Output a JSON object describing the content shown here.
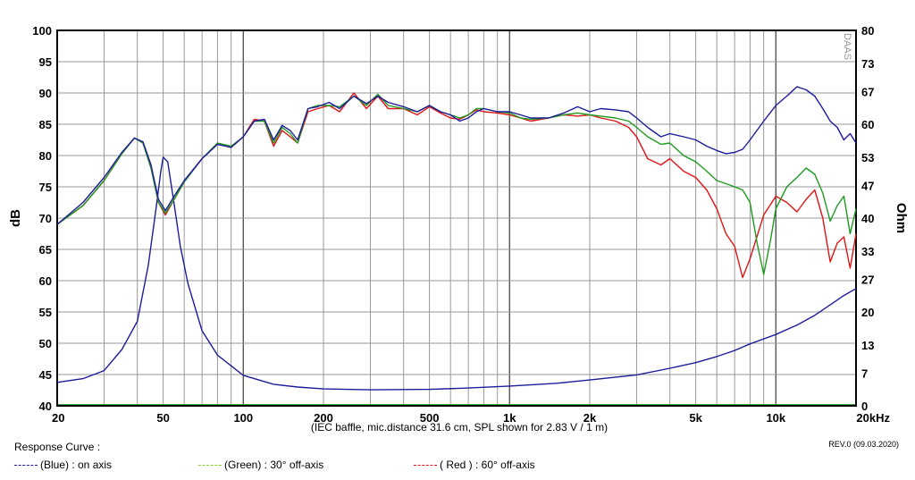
{
  "chart_data": {
    "type": "line",
    "ylabel_left": "dB",
    "ylabel_right": "Ohm",
    "note": "(IEC baffle, mic.distance 31.6 cm, SPL shown for 2.83 V / 1 m)",
    "watermark": "DAAS",
    "x_scale": "log",
    "xlim": [
      20,
      20000
    ],
    "ylim_left": [
      40,
      100
    ],
    "ylim_right": [
      0,
      80
    ],
    "grid": true,
    "x_ticks": [
      {
        "value": 20,
        "label": "20"
      },
      {
        "value": 50,
        "label": "50"
      },
      {
        "value": 100,
        "label": "100"
      },
      {
        "value": 200,
        "label": "200"
      },
      {
        "value": 500,
        "label": "500"
      },
      {
        "value": 1000,
        "label": "1k"
      },
      {
        "value": 2000,
        "label": "2k"
      },
      {
        "value": 5000,
        "label": "5k"
      },
      {
        "value": 10000,
        "label": "10k"
      },
      {
        "value": 20000,
        "label": "20kHz"
      }
    ],
    "y_ticks_left": [
      {
        "value": 100,
        "label": "100"
      },
      {
        "value": 95,
        "label": "95"
      },
      {
        "value": 90,
        "label": "90"
      },
      {
        "value": 85,
        "label": "85"
      },
      {
        "value": 80,
        "label": "80"
      },
      {
        "value": 75,
        "label": "75"
      },
      {
        "value": 70,
        "label": "70"
      },
      {
        "value": 65,
        "label": "65"
      },
      {
        "value": 60,
        "label": "60"
      },
      {
        "value": 55,
        "label": "55"
      },
      {
        "value": 50,
        "label": "50"
      },
      {
        "value": 45,
        "label": "45"
      },
      {
        "value": 40,
        "label": "40"
      }
    ],
    "y_ticks_right": [
      {
        "value": 80,
        "label": "80"
      },
      {
        "value": 73,
        "label": "73"
      },
      {
        "value": 67,
        "label": "67"
      },
      {
        "value": 60,
        "label": "60"
      },
      {
        "value": 53,
        "label": "53"
      },
      {
        "value": 47,
        "label": "47"
      },
      {
        "value": 40,
        "label": "40"
      },
      {
        "value": 33,
        "label": "33"
      },
      {
        "value": 27,
        "label": "27"
      },
      {
        "value": 20,
        "label": "20"
      },
      {
        "value": 13,
        "label": "13"
      },
      {
        "value": 7,
        "label": "7"
      },
      {
        "value": 0,
        "label": "0"
      }
    ],
    "series": [
      {
        "name": "(Blue)  : on axis",
        "color": "#1c1c9c",
        "axis": "left",
        "points": [
          [
            20,
            69.0
          ],
          [
            25,
            72.5
          ],
          [
            30,
            76.5
          ],
          [
            35,
            80.5
          ],
          [
            39,
            82.8
          ],
          [
            42,
            82.2
          ],
          [
            45,
            78.5
          ],
          [
            48,
            73.0
          ],
          [
            51,
            71.2
          ],
          [
            55,
            73.5
          ],
          [
            60,
            76.0
          ],
          [
            70,
            79.5
          ],
          [
            80,
            81.8
          ],
          [
            90,
            81.3
          ],
          [
            100,
            83.0
          ],
          [
            110,
            85.5
          ],
          [
            120,
            85.8
          ],
          [
            130,
            82.5
          ],
          [
            140,
            84.8
          ],
          [
            150,
            84.0
          ],
          [
            160,
            82.5
          ],
          [
            175,
            87.5
          ],
          [
            190,
            87.8
          ],
          [
            210,
            88.5
          ],
          [
            230,
            87.5
          ],
          [
            260,
            89.5
          ],
          [
            290,
            88.3
          ],
          [
            320,
            89.5
          ],
          [
            350,
            88.5
          ],
          [
            400,
            87.8
          ],
          [
            450,
            87.0
          ],
          [
            500,
            88.0
          ],
          [
            550,
            87.0
          ],
          [
            600,
            86.5
          ],
          [
            650,
            85.5
          ],
          [
            700,
            86.0
          ],
          [
            750,
            87.0
          ],
          [
            800,
            87.5
          ],
          [
            900,
            87.0
          ],
          [
            1000,
            87.0
          ],
          [
            1100,
            86.5
          ],
          [
            1200,
            86.0
          ],
          [
            1400,
            86.0
          ],
          [
            1600,
            86.8
          ],
          [
            1800,
            87.8
          ],
          [
            2000,
            87.0
          ],
          [
            2200,
            87.5
          ],
          [
            2500,
            87.3
          ],
          [
            2800,
            87.0
          ],
          [
            3000,
            86.0
          ],
          [
            3300,
            84.5
          ],
          [
            3700,
            83.0
          ],
          [
            4000,
            83.5
          ],
          [
            4500,
            83.0
          ],
          [
            5000,
            82.5
          ],
          [
            5500,
            81.5
          ],
          [
            6000,
            80.8
          ],
          [
            6500,
            80.3
          ],
          [
            7000,
            80.5
          ],
          [
            7500,
            81.0
          ],
          [
            8000,
            82.5
          ],
          [
            9000,
            85.5
          ],
          [
            10000,
            88.0
          ],
          [
            11000,
            89.5
          ],
          [
            12000,
            91.0
          ],
          [
            13000,
            90.5
          ],
          [
            14000,
            89.5
          ],
          [
            15000,
            87.5
          ],
          [
            16000,
            85.5
          ],
          [
            17000,
            84.5
          ],
          [
            18000,
            82.5
          ],
          [
            19000,
            83.5
          ],
          [
            20000,
            82.0
          ]
        ]
      },
      {
        "name": "(Green) : 30° off-axis",
        "color": "#1e9b1e",
        "axis": "left",
        "points": [
          [
            20,
            69.0
          ],
          [
            25,
            72.0
          ],
          [
            30,
            76.0
          ],
          [
            35,
            80.3
          ],
          [
            39,
            82.8
          ],
          [
            42,
            82.0
          ],
          [
            45,
            78.0
          ],
          [
            48,
            72.5
          ],
          [
            51,
            70.8
          ],
          [
            55,
            73.0
          ],
          [
            60,
            75.8
          ],
          [
            70,
            79.5
          ],
          [
            80,
            82.0
          ],
          [
            90,
            81.5
          ],
          [
            100,
            83.0
          ],
          [
            110,
            85.5
          ],
          [
            120,
            85.5
          ],
          [
            130,
            82.0
          ],
          [
            140,
            84.5
          ],
          [
            150,
            83.5
          ],
          [
            160,
            82.0
          ],
          [
            175,
            87.5
          ],
          [
            190,
            88.0
          ],
          [
            210,
            88.0
          ],
          [
            230,
            87.8
          ],
          [
            260,
            89.5
          ],
          [
            290,
            88.0
          ],
          [
            320,
            89.8
          ],
          [
            350,
            88.0
          ],
          [
            400,
            87.5
          ],
          [
            450,
            87.0
          ],
          [
            500,
            88.0
          ],
          [
            550,
            87.0
          ],
          [
            600,
            86.5
          ],
          [
            650,
            86.0
          ],
          [
            700,
            86.5
          ],
          [
            750,
            87.5
          ],
          [
            800,
            87.5
          ],
          [
            900,
            87.0
          ],
          [
            1000,
            86.8
          ],
          [
            1100,
            86.0
          ],
          [
            1200,
            85.8
          ],
          [
            1400,
            86.0
          ],
          [
            1600,
            86.5
          ],
          [
            1800,
            86.8
          ],
          [
            2000,
            86.5
          ],
          [
            2200,
            86.3
          ],
          [
            2500,
            86.0
          ],
          [
            2800,
            85.5
          ],
          [
            3000,
            84.5
          ],
          [
            3300,
            83.0
          ],
          [
            3700,
            81.8
          ],
          [
            4000,
            82.0
          ],
          [
            4500,
            80.0
          ],
          [
            5000,
            79.0
          ],
          [
            5500,
            77.5
          ],
          [
            6000,
            76.0
          ],
          [
            6500,
            75.5
          ],
          [
            7000,
            75.0
          ],
          [
            7500,
            74.5
          ],
          [
            8000,
            72.5
          ],
          [
            8500,
            66.0
          ],
          [
            9000,
            61.0
          ],
          [
            9500,
            66.0
          ],
          [
            10000,
            71.5
          ],
          [
            11000,
            75.0
          ],
          [
            12000,
            76.5
          ],
          [
            13000,
            78.0
          ],
          [
            14000,
            77.0
          ],
          [
            15000,
            74.0
          ],
          [
            16000,
            69.5
          ],
          [
            17000,
            72.0
          ],
          [
            18000,
            73.5
          ],
          [
            19000,
            67.5
          ],
          [
            20000,
            71.5
          ]
        ]
      },
      {
        "name": "( Red ) : 60° off-axis",
        "color": "#e11414",
        "axis": "left",
        "points": [
          [
            20,
            69.0
          ],
          [
            25,
            72.0
          ],
          [
            30,
            76.0
          ],
          [
            35,
            80.3
          ],
          [
            39,
            82.8
          ],
          [
            42,
            82.0
          ],
          [
            45,
            78.0
          ],
          [
            48,
            72.5
          ],
          [
            51,
            70.5
          ],
          [
            55,
            73.0
          ],
          [
            60,
            75.8
          ],
          [
            70,
            79.5
          ],
          [
            80,
            81.8
          ],
          [
            90,
            81.3
          ],
          [
            100,
            83.0
          ],
          [
            110,
            85.8
          ],
          [
            120,
            85.5
          ],
          [
            130,
            81.5
          ],
          [
            140,
            84.0
          ],
          [
            150,
            83.0
          ],
          [
            160,
            82.0
          ],
          [
            175,
            87.0
          ],
          [
            190,
            87.5
          ],
          [
            210,
            88.0
          ],
          [
            230,
            87.0
          ],
          [
            260,
            90.0
          ],
          [
            290,
            87.5
          ],
          [
            320,
            89.5
          ],
          [
            350,
            87.5
          ],
          [
            400,
            87.5
          ],
          [
            450,
            86.5
          ],
          [
            500,
            87.8
          ],
          [
            550,
            86.8
          ],
          [
            600,
            86.0
          ],
          [
            650,
            85.8
          ],
          [
            700,
            86.5
          ],
          [
            750,
            87.3
          ],
          [
            800,
            87.0
          ],
          [
            900,
            86.8
          ],
          [
            1000,
            86.5
          ],
          [
            1100,
            86.0
          ],
          [
            1200,
            85.5
          ],
          [
            1400,
            86.0
          ],
          [
            1600,
            86.5
          ],
          [
            1800,
            86.3
          ],
          [
            2000,
            86.5
          ],
          [
            2200,
            86.0
          ],
          [
            2500,
            85.5
          ],
          [
            2800,
            84.5
          ],
          [
            3000,
            83.0
          ],
          [
            3300,
            79.5
          ],
          [
            3700,
            78.5
          ],
          [
            4000,
            79.5
          ],
          [
            4500,
            77.5
          ],
          [
            5000,
            76.5
          ],
          [
            5500,
            74.5
          ],
          [
            6000,
            71.5
          ],
          [
            6500,
            67.5
          ],
          [
            7000,
            65.5
          ],
          [
            7500,
            60.5
          ],
          [
            8000,
            63.5
          ],
          [
            9000,
            70.5
          ],
          [
            10000,
            73.5
          ],
          [
            11000,
            72.5
          ],
          [
            12000,
            71.0
          ],
          [
            13000,
            73.0
          ],
          [
            14000,
            74.5
          ],
          [
            15000,
            70.0
          ],
          [
            16000,
            63.0
          ],
          [
            17000,
            66.0
          ],
          [
            18000,
            67.0
          ],
          [
            19000,
            62.0
          ],
          [
            20000,
            67.5
          ]
        ]
      },
      {
        "name": "Impedance",
        "color": "#1c1c9c",
        "axis": "right",
        "points": [
          [
            20,
            5.0
          ],
          [
            25,
            5.8
          ],
          [
            30,
            7.5
          ],
          [
            35,
            12.0
          ],
          [
            40,
            18.0
          ],
          [
            44,
            30.0
          ],
          [
            47,
            42.0
          ],
          [
            49,
            50.0
          ],
          [
            50,
            53.0
          ],
          [
            52,
            52.0
          ],
          [
            55,
            43.0
          ],
          [
            58,
            34.0
          ],
          [
            62,
            26.0
          ],
          [
            70,
            16.0
          ],
          [
            80,
            10.8
          ],
          [
            100,
            6.5
          ],
          [
            130,
            4.6
          ],
          [
            160,
            4.0
          ],
          [
            200,
            3.6
          ],
          [
            300,
            3.4
          ],
          [
            500,
            3.5
          ],
          [
            700,
            3.8
          ],
          [
            1000,
            4.2
          ],
          [
            1500,
            4.8
          ],
          [
            2000,
            5.5
          ],
          [
            3000,
            6.6
          ],
          [
            4000,
            8.0
          ],
          [
            5000,
            9.2
          ],
          [
            6000,
            10.5
          ],
          [
            7000,
            11.8
          ],
          [
            8000,
            13.2
          ],
          [
            10000,
            15.2
          ],
          [
            12000,
            17.2
          ],
          [
            14000,
            19.3
          ],
          [
            16000,
            21.5
          ],
          [
            18000,
            23.5
          ],
          [
            20000,
            25.0
          ]
        ]
      }
    ]
  },
  "footer": {
    "title": "Response Curve :",
    "rev": "REV.0 (09.03.2020)",
    "legend": [
      {
        "label": "(Blue)  : on axis",
        "color": "#1c1c9c"
      },
      {
        "label": "(Green) : 30° off-axis",
        "color": "#8fcf2a"
      },
      {
        "label": "( Red ) : 60° off-axis",
        "color": "#e11414"
      }
    ]
  }
}
